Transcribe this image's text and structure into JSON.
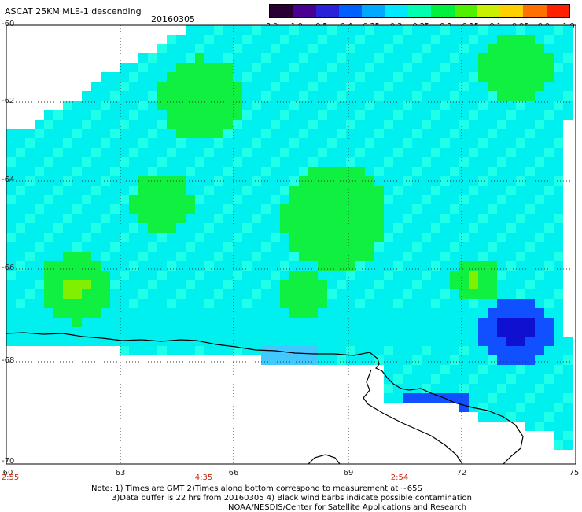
{
  "header": {
    "title": "ASCAT 25KM MLE-1 descending",
    "date": "20160305"
  },
  "colorbar": {
    "labels": [
      "-3.0",
      "-1.0",
      "-0.5",
      "-0.4",
      "-0.35",
      "-0.3",
      "-0.25",
      "-0.2",
      "-0.15",
      "-0.1",
      "-0.05",
      "0.0",
      "1.0"
    ],
    "colors": [
      "#2a0033",
      "#4a0090",
      "#2a22d8",
      "#0060ff",
      "#00a8ff",
      "#00e8ff",
      "#00ffb0",
      "#00f040",
      "#50f000",
      "#c8f000",
      "#ffd000",
      "#ff7000",
      "#ff2000"
    ]
  },
  "map": {
    "lat_labels": [
      "-60",
      "-62",
      "-64",
      "-66",
      "-68",
      "-70"
    ],
    "lon_labels": [
      "60",
      "63",
      "66",
      "69",
      "72",
      "75"
    ],
    "time_labels": [
      "2:55",
      "4:35",
      "2:54"
    ]
  },
  "footer": {
    "line1": "Note: 1) Times are GMT 2)Times along bottom correspond to measurement at ~65S",
    "line2": "3)Data buffer is 22 hrs from 20160305 4) Black wind barbs indicate possible contamination",
    "line3": "NOAA/NESDIS/Center for Satellite Applications and Research"
  },
  "palette": {
    "cyan": "#00f0f0",
    "cyan_light": "#20ffe8",
    "green": "#10f040",
    "green_yellow": "#80f000",
    "sky": "#40c8ff",
    "blue": "#1050ff",
    "navy": "#1010d0",
    "purple": "#4a10a0"
  }
}
